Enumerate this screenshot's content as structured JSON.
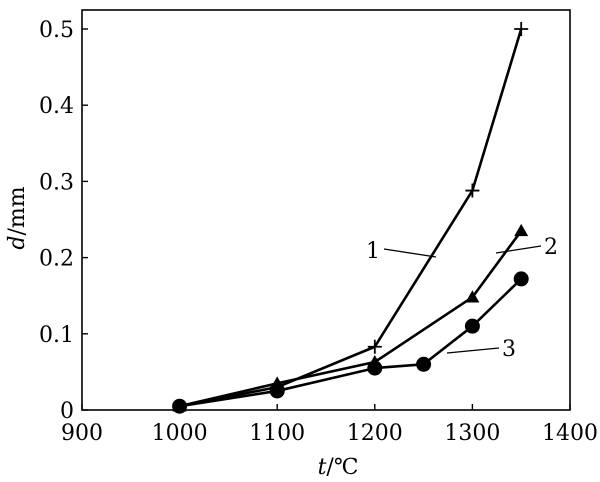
{
  "chart_data": {
    "type": "line",
    "xlabel_var": "t",
    "xlabel_unit": "/℃",
    "ylabel_var": "d",
    "ylabel_unit": "/mm",
    "xlim": [
      900,
      1400
    ],
    "ylim": [
      0,
      0.5
    ],
    "xticks": [
      900,
      1000,
      1100,
      1200,
      1300,
      1400
    ],
    "yticks": [
      0,
      0.1,
      0.2,
      0.3,
      0.4,
      0.5
    ],
    "ytick_labels": [
      "0",
      "0.1",
      "0.2",
      "0.3",
      "0.4",
      "0.5"
    ],
    "grid": false,
    "series": [
      {
        "name": "1",
        "marker": "plus",
        "x": [
          1000,
          1100,
          1200,
          1300,
          1350
        ],
        "y": [
          0.005,
          0.03,
          0.083,
          0.288,
          0.5
        ]
      },
      {
        "name": "2",
        "marker": "triangle",
        "x": [
          1000,
          1100,
          1200,
          1300,
          1350
        ],
        "y": [
          0.005,
          0.035,
          0.063,
          0.148,
          0.235
        ]
      },
      {
        "name": "3",
        "marker": "circle",
        "x": [
          1000,
          1100,
          1200,
          1250,
          1300,
          1350
        ],
        "y": [
          0.005,
          0.025,
          0.055,
          0.06,
          0.11,
          0.172
        ]
      }
    ]
  }
}
